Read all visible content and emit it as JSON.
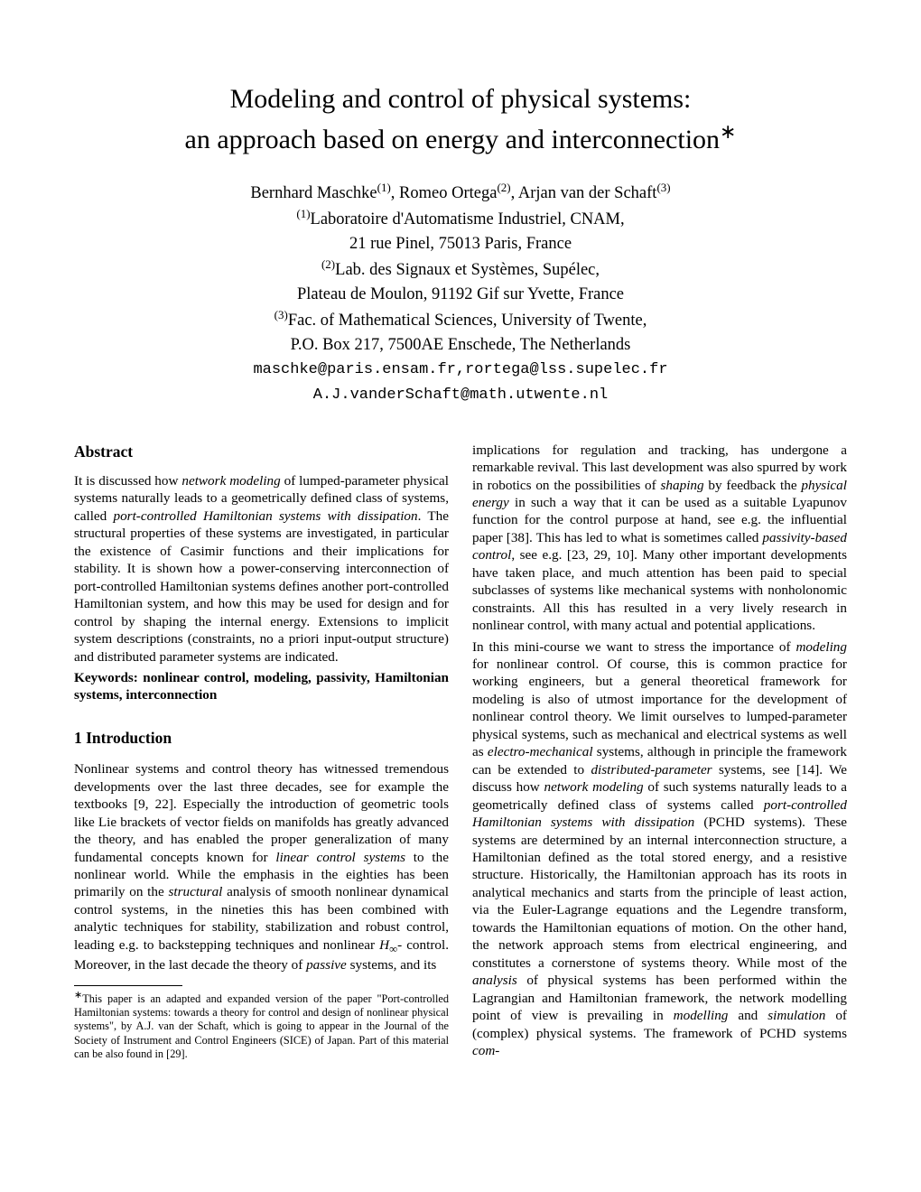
{
  "title_line1": "Modeling and control of physical systems:",
  "title_line2": "an approach based on energy and interconnection",
  "title_marker": "∗",
  "authors": {
    "line1_a": "Bernhard Maschke",
    "line1_sup1": "(1)",
    "line1_b": ", Romeo Ortega",
    "line1_sup2": "(2)",
    "line1_c": ", Arjan van der Schaft",
    "line1_sup3": "(3)",
    "aff1_sup": "(1)",
    "aff1_a": "Laboratoire d'Automatisme Industriel, CNAM,",
    "aff1_b": "21 rue Pinel, 75013 Paris, France",
    "aff2_sup": "(2)",
    "aff2_a": "Lab. des Signaux et Systèmes, Supélec,",
    "aff2_b": "Plateau de Moulon, 91192 Gif sur Yvette, France",
    "aff3_sup": "(3)",
    "aff3_a": "Fac. of Mathematical Sciences, University of Twente,",
    "aff3_b": "P.O. Box 217, 7500AE Enschede, The Netherlands",
    "email1": "maschke@paris.ensam.fr,rortega@lss.supelec.fr",
    "email2": "A.J.vanderSchaft@math.utwente.nl"
  },
  "abstract_heading": "Abstract",
  "abstract_p1a": "It is discussed how ",
  "abstract_p1i1": "network modeling",
  "abstract_p1b": " of lumped-parameter physical systems naturally leads to a geometrically defined class of systems, called ",
  "abstract_p1i2": "port-controlled Hamiltonian systems with dissipation",
  "abstract_p1c": ". The structural properties of these systems are investigated, in particular the existence of Casimir functions and their implications for stability. It is shown how a power-conserving interconnection of port-controlled Hamiltonian systems defines another port-controlled Hamiltonian system, and how this may be used for design and for control by shaping the internal energy. Extensions to implicit system descriptions (constraints, no a priori input-output structure) and distributed parameter systems are indicated.",
  "keywords": "Keywords: nonlinear control, modeling, passivity, Hamiltonian systems, interconnection",
  "intro_heading": "1   Introduction",
  "intro_p1a": "Nonlinear systems and control theory has witnessed tremendous developments over the last three decades, see for example the textbooks [9, 22]. Especially the introduction of geometric tools like Lie brackets of vector fields on manifolds has greatly advanced the theory, and has enabled the proper generalization of many fundamental concepts known for ",
  "intro_p1i1": "linear control systems",
  "intro_p1b": " to the nonlinear world. While the emphasis in the eighties has been primarily on the ",
  "intro_p1i2": "structural",
  "intro_p1c": " analysis of smooth nonlinear dynamical control systems, in the nineties this has been combined with analytic techniques for stability, stabilization and robust control, leading e.g. to backstepping techniques and nonlinear ",
  "intro_p1i3": "H",
  "intro_p1sub": "∞",
  "intro_p1d": "- control. Moreover, in the last decade the theory of ",
  "intro_p1i4": "passive",
  "intro_p1e": " systems, and its",
  "footnote_marker": "∗",
  "footnote_text": "This paper is an adapted and expanded version of the paper \"Port-controlled Hamiltonian systems: towards a theory for control and design of nonlinear physical systems\", by A.J. van der Schaft, which is going to appear in the Journal of the Society of Instrument and Control Engineers (SICE) of Japan. Part of this material can be also found in [29].",
  "col2_p1a": "implications for regulation and tracking, has undergone a remarkable revival. This last development was also spurred by work in robotics on the possibilities of ",
  "col2_p1i1": "shaping",
  "col2_p1b": " by feedback the ",
  "col2_p1i2": "physical energy",
  "col2_p1c": " in such a way that it can be used as a suitable Lyapunov function for the control purpose at hand, see e.g. the influential paper [38]. This has led to what is sometimes called ",
  "col2_p1i3": "passivity-based control",
  "col2_p1d": ", see e.g. [23, 29, 10]. Many other important developments have taken place, and much attention has been paid to special subclasses of systems like mechanical systems with nonholonomic constraints. All this has resulted in a very lively research in nonlinear control, with many actual and potential applications.",
  "col2_p2a": "In this mini-course we want to stress the importance of ",
  "col2_p2i1": "modeling",
  "col2_p2b": " for nonlinear control. Of course, this is common practice for working engineers, but a general theoretical framework for modeling is also of utmost importance for the development of nonlinear control theory. We limit ourselves to lumped-parameter physical systems, such as mechanical and electrical systems as well as ",
  "col2_p2i2": "electro-mechanical",
  "col2_p2c": " systems, although in principle the framework can be extended to ",
  "col2_p2i3": "distributed-parameter",
  "col2_p2d": " systems, see [14]. We discuss how ",
  "col2_p2i4": "network modeling",
  "col2_p2e": " of such systems naturally leads to a geometrically defined class of systems called ",
  "col2_p2i5": "port-controlled Hamiltonian systems with dissipation",
  "col2_p2f": " (PCHD systems). These systems are determined by an internal interconnection structure, a Hamiltonian defined as the total stored energy, and a resistive structure. Historically, the Hamiltonian approach has its roots in analytical mechanics and starts from the principle of least action, via the Euler-Lagrange equations and the Legendre transform, towards the Hamiltonian equations of motion. On the other hand, the network approach stems from electrical engineering, and constitutes a cornerstone of systems theory. While most of the ",
  "col2_p2i6": "analysis",
  "col2_p2g": " of physical systems has been performed within the Lagrangian and Hamiltonian framework, the network modelling point of view is prevailing in ",
  "col2_p2i7": "modelling",
  "col2_p2h": " and ",
  "col2_p2i8": "simulation",
  "col2_p2i": " of (complex) physical systems. The framework of PCHD systems ",
  "col2_p2i9": "com-"
}
